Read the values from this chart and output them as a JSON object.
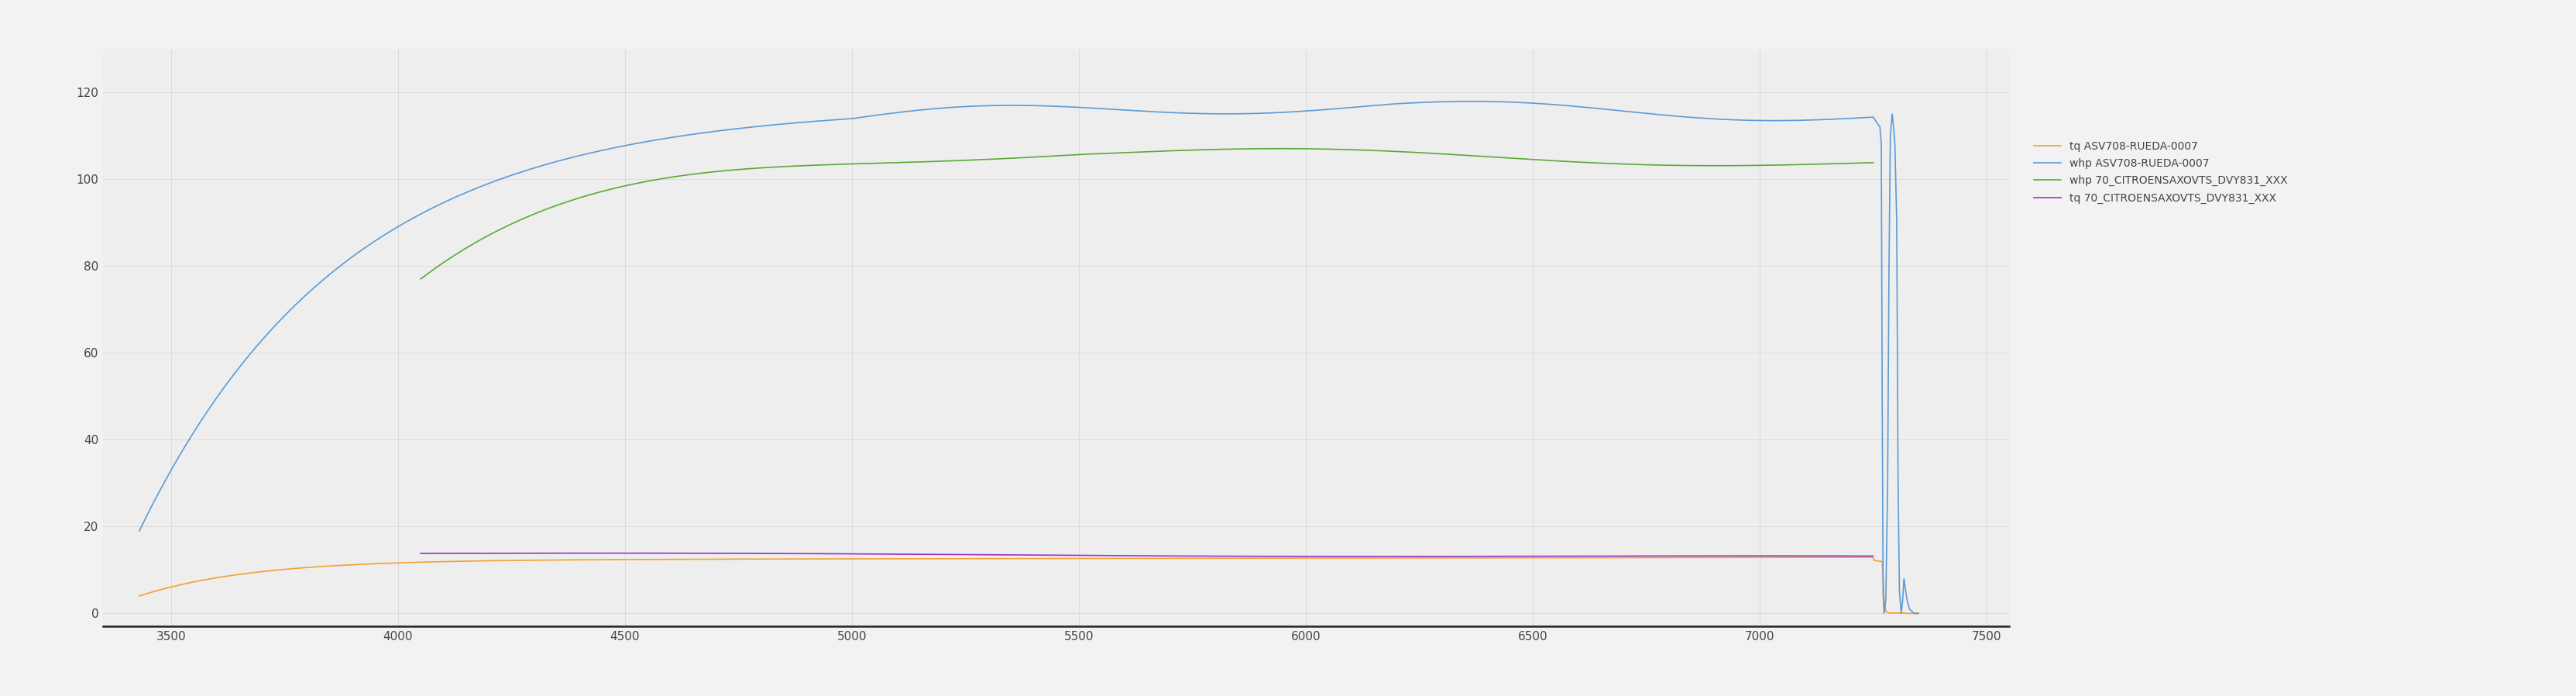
{
  "bg_color": "#f2f2f2",
  "plot_bg_color": "#eeeeee",
  "grid_color": "#d8d8d8",
  "x_min": 3350,
  "x_max": 7550,
  "y_min": -3,
  "y_max": 130,
  "x_ticks": [
    3500,
    4000,
    4500,
    5000,
    5500,
    6000,
    6500,
    7000,
    7500
  ],
  "y_ticks": [
    0,
    20,
    40,
    60,
    80,
    100,
    120
  ],
  "tick_fontsize": 11,
  "legend_labels": [
    "tq ASV708-RUEDA-0007",
    "whp ASV708-RUEDA-0007",
    "whp 70_CITROENSAXOVTS_DVY831_XXX",
    "tq 70_CITROENSAXOVTS_DVY831_XXX"
  ],
  "line_colors": [
    "#f5a030",
    "#5b9bd5",
    "#5aaa38",
    "#9932cc"
  ],
  "linewidth": 1.2
}
